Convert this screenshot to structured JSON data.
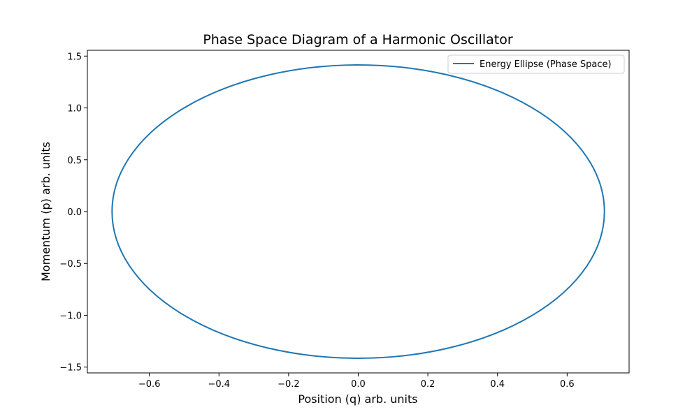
{
  "chart_data": {
    "type": "line",
    "title": "Phase Space Diagram of a Harmonic Oscillator",
    "xlabel": "Position (q) arb. units",
    "ylabel": "Momentum (p) arb. units",
    "xlim": [
      -0.778,
      0.778
    ],
    "ylim": [
      -1.556,
      1.556
    ],
    "x_ticks": [
      -0.6,
      -0.4,
      -0.2,
      0.0,
      0.2,
      0.4,
      0.6
    ],
    "x_tick_labels": [
      "−0.6",
      "−0.4",
      "−0.2",
      "0.0",
      "0.2",
      "0.4",
      "0.6"
    ],
    "y_ticks": [
      -1.5,
      -1.0,
      -0.5,
      0.0,
      0.5,
      1.0,
      1.5
    ],
    "y_tick_labels": [
      "−1.5",
      "−1.0",
      "−0.5",
      "0.0",
      "0.5",
      "1.0",
      "1.5"
    ],
    "grid": false,
    "legend": {
      "position": "top-right",
      "entries": [
        "Energy Ellipse (Phase Space)"
      ]
    },
    "series": [
      {
        "name": "Energy Ellipse (Phase Space)",
        "color": "#1f77b4",
        "shape": "ellipse",
        "x_amplitude": 0.7071,
        "p_amplitude": 1.4142,
        "points": [
          [
            0.7071,
            0.0
          ],
          [
            0.6964,
            0.2456
          ],
          [
            0.6645,
            0.4837
          ],
          [
            0.6124,
            0.7071
          ],
          [
            0.5417,
            0.9091
          ],
          [
            0.4545,
            1.0833
          ],
          [
            0.3536,
            1.2247
          ],
          [
            0.2418,
            1.3289
          ],
          [
            0.1228,
            1.3927
          ],
          [
            0.0,
            1.4142
          ],
          [
            -0.1228,
            1.3927
          ],
          [
            -0.2418,
            1.3289
          ],
          [
            -0.3536,
            1.2247
          ],
          [
            -0.4545,
            1.0833
          ],
          [
            -0.5417,
            0.9091
          ],
          [
            -0.6124,
            0.7071
          ],
          [
            -0.6645,
            0.4837
          ],
          [
            -0.6964,
            0.2456
          ],
          [
            -0.7071,
            0.0
          ],
          [
            -0.6964,
            -0.2456
          ],
          [
            -0.6645,
            -0.4837
          ],
          [
            -0.6124,
            -0.7071
          ],
          [
            -0.5417,
            -0.9091
          ],
          [
            -0.4545,
            -1.0833
          ],
          [
            -0.3536,
            -1.2247
          ],
          [
            -0.2418,
            -1.3289
          ],
          [
            -0.1228,
            -1.3927
          ],
          [
            0.0,
            -1.4142
          ],
          [
            0.1228,
            -1.3927
          ],
          [
            0.2418,
            -1.3289
          ],
          [
            0.3536,
            -1.2247
          ],
          [
            0.4545,
            -1.0833
          ],
          [
            0.5417,
            -0.9091
          ],
          [
            0.6124,
            -0.7071
          ],
          [
            0.6645,
            -0.4837
          ],
          [
            0.6964,
            -0.2456
          ],
          [
            0.7071,
            0.0
          ]
        ]
      }
    ]
  }
}
